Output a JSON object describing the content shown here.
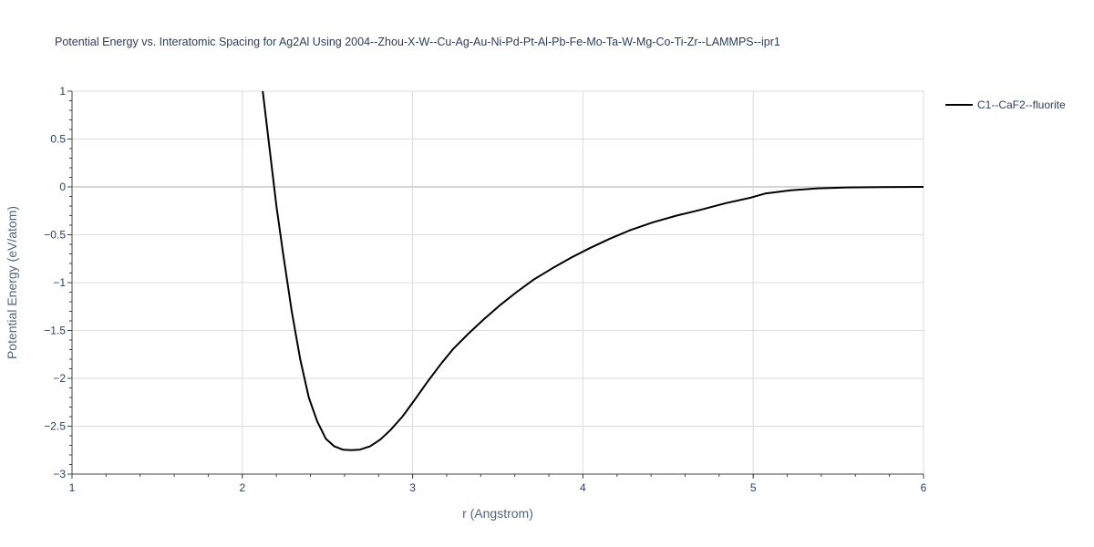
{
  "chart_data": {
    "type": "line",
    "title": "Potential Energy vs. Interatomic Spacing for Ag2Al Using 2004--Zhou-X-W--Cu-Ag-Au-Ni-Pd-Pt-Al-Pb-Fe-Mo-Ta-W-Mg-Co-Ti-Zr--LAMMPS--ipr1",
    "xlabel": "r (Angstrom)",
    "ylabel": "Potential Energy (eV/atom)",
    "xlim": [
      1,
      6
    ],
    "ylim": [
      -3,
      1
    ],
    "xticks": [
      "1",
      "2",
      "3",
      "4",
      "5",
      "6"
    ],
    "yticks": [
      "1",
      "0.5",
      "0",
      "−0.5",
      "−1",
      "−1.5",
      "−2",
      "−2.5",
      "−3"
    ],
    "grid": true,
    "legend_position": "top-right",
    "series": [
      {
        "name": "C1--CaF2--fluorite",
        "color": "#000000",
        "x": [
          2.12,
          2.16,
          2.2,
          2.24,
          2.29,
          2.34,
          2.39,
          2.44,
          2.49,
          2.54,
          2.59,
          2.64,
          2.69,
          2.75,
          2.81,
          2.87,
          2.94,
          3.01,
          3.09,
          3.17,
          3.24,
          3.33,
          3.42,
          3.51,
          3.61,
          3.71,
          3.82,
          3.93,
          4.04,
          4.16,
          4.28,
          4.41,
          4.55,
          4.69,
          4.84,
          4.99,
          5.07,
          5.22,
          5.38,
          5.55,
          5.75,
          6.0
        ],
        "y": [
          1.0,
          0.4,
          -0.2,
          -0.7,
          -1.3,
          -1.8,
          -2.2,
          -2.45,
          -2.63,
          -2.71,
          -2.745,
          -2.75,
          -2.745,
          -2.71,
          -2.64,
          -2.54,
          -2.4,
          -2.23,
          -2.03,
          -1.84,
          -1.69,
          -1.53,
          -1.38,
          -1.24,
          -1.1,
          -0.97,
          -0.85,
          -0.74,
          -0.64,
          -0.54,
          -0.45,
          -0.37,
          -0.3,
          -0.24,
          -0.17,
          -0.11,
          -0.07,
          -0.035,
          -0.015,
          -0.006,
          -0.002,
          0.0
        ]
      }
    ]
  }
}
